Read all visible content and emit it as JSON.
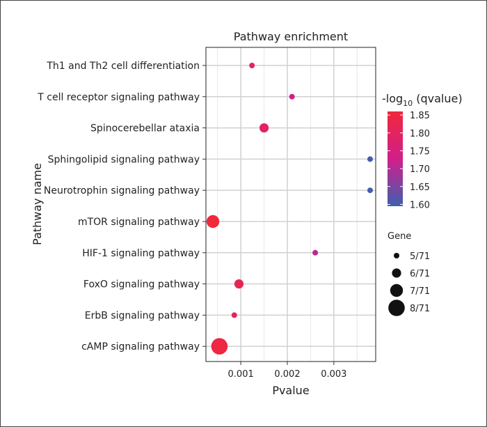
{
  "chart_data": {
    "type": "scatter",
    "title": "Pathway enrichment",
    "xlabel": "Pvalue",
    "ylabel": "Pathway name",
    "xlim": [
      0.00025,
      0.0039
    ],
    "xticks": [
      0.001,
      0.002,
      0.003
    ],
    "xtick_labels": [
      "0.001",
      "0.002",
      "0.003"
    ],
    "grid": true,
    "color_legend": {
      "title_prefix": "-log",
      "title_sub": "10",
      "title_suffix": " (qvalue)",
      "min": 1.595,
      "max": 1.86,
      "ticks": [
        1.85,
        1.8,
        1.75,
        1.7,
        1.65,
        1.6
      ],
      "tick_labels": [
        "1.85",
        "1.80",
        "1.75",
        "1.70",
        "1.65",
        "1.60"
      ],
      "low_color": "#3F5FB0",
      "mid_color": "#D11F8A",
      "high_color": "#F0283C"
    },
    "size_legend": {
      "title": "Gene",
      "entries": [
        {
          "label": "5/71",
          "count": 5
        },
        {
          "label": "6/71",
          "count": 6
        },
        {
          "label": "7/71",
          "count": 7
        },
        {
          "label": "8/71",
          "count": 8
        }
      ]
    },
    "points": [
      {
        "pathway": "Th1 and Th2 cell differentiation",
        "pvalue": 0.00124,
        "qvalue_log10": 1.8,
        "gene_count": 5
      },
      {
        "pathway": "T cell receptor signaling pathway",
        "pvalue": 0.0021,
        "qvalue_log10": 1.73,
        "gene_count": 5
      },
      {
        "pathway": "Spinocerebellar ataxia",
        "pvalue": 0.0015,
        "qvalue_log10": 1.79,
        "gene_count": 6
      },
      {
        "pathway": "Sphingolipid signaling pathway",
        "pvalue": 0.00378,
        "qvalue_log10": 1.6,
        "gene_count": 5
      },
      {
        "pathway": "Neurotrophin signaling pathway",
        "pvalue": 0.00378,
        "qvalue_log10": 1.6,
        "gene_count": 5
      },
      {
        "pathway": "mTOR signaling pathway",
        "pvalue": 0.0004,
        "qvalue_log10": 1.86,
        "gene_count": 7
      },
      {
        "pathway": "HIF-1 signaling pathway",
        "pvalue": 0.0026,
        "qvalue_log10": 1.71,
        "gene_count": 5
      },
      {
        "pathway": "FoxO signaling pathway",
        "pvalue": 0.00096,
        "qvalue_log10": 1.82,
        "gene_count": 6
      },
      {
        "pathway": "ErbB signaling pathway",
        "pvalue": 0.00086,
        "qvalue_log10": 1.81,
        "gene_count": 5
      },
      {
        "pathway": "cAMP signaling pathway",
        "pvalue": 0.00054,
        "qvalue_log10": 1.85,
        "gene_count": 8
      }
    ]
  }
}
